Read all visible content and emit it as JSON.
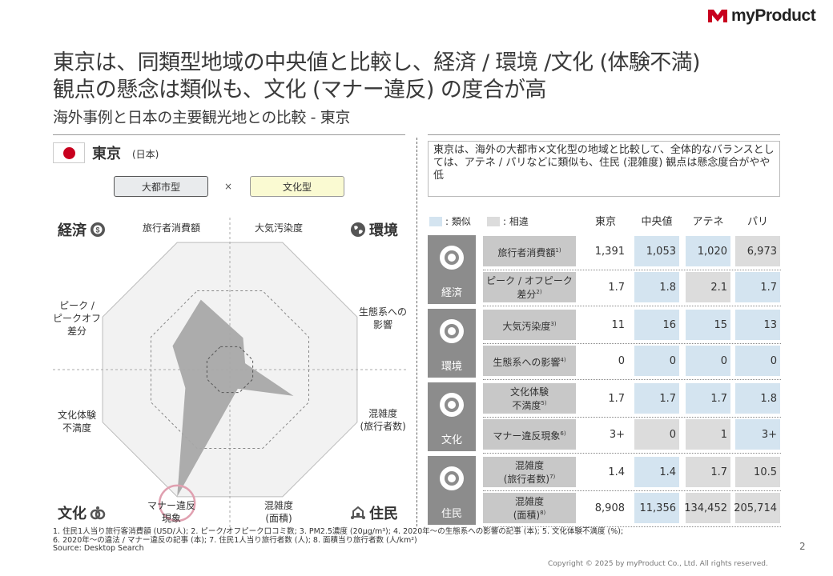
{
  "brand": {
    "name": "myProduct"
  },
  "title": {
    "line1": "東京は、同類型地域の中央値と比較し、経済 / 環境 /文化 (体験不満)",
    "line2": "観点の懸念は類似も、文化 (マナー違反) の度合が高",
    "subtitle": "海外事例と日本の主要観光地との比較 - 東京"
  },
  "city": {
    "name": "東京",
    "country": "(日本)"
  },
  "tags": {
    "type1": "大都市型",
    "times": "×",
    "type2": "文化型"
  },
  "radar": {
    "axes": [
      "旅行者消費額",
      "大気汚染度",
      "生態系への\n影響",
      "混雑度\n(旅行者数)",
      "混雑度\n(面積)",
      "マナー違反\n現象",
      "文化体験\n不満度",
      "ピーク /\nピークオフ\n差分"
    ],
    "values": [
      0.55,
      0.25,
      0.12,
      0.5,
      0.15,
      1.0,
      0.35,
      0.45
    ],
    "highlighted_axis": "マナー違反\n現象",
    "categories": {
      "econ": "経済",
      "env": "環境",
      "culture": "文化",
      "resident": "住民"
    }
  },
  "note": "東京は、海外の大都市×文化型の地域と比較して、全体的なバランスとしては、アテネ / パリなどに類似も、住民 (混雑度) 観点は懸念度合がやや低",
  "legend": {
    "similar": ": 類似",
    "different": ": 相違"
  },
  "colors": {
    "similar": "#d4e4f0",
    "different": "#dcdcdc",
    "category": "#8c8c8c",
    "metric": "#c8c8c8",
    "brand_red": "#c8001e"
  },
  "table": {
    "columns": [
      "東京",
      "中央値",
      "アテネ",
      "パリ"
    ],
    "groups": [
      {
        "name": "経済",
        "icon": "money-cycle-icon",
        "rows": [
          {
            "metric": "旅行者消費額",
            "sup": "1)",
            "values": [
              "1,391",
              "1,053",
              "1,020",
              "6,973"
            ],
            "similar": [
              false,
              true,
              true,
              false
            ]
          },
          {
            "metric": "ピーク / オフピーク\n差分",
            "sup": "2)",
            "values": [
              "1.7",
              "1.8",
              "2.1",
              "1.7"
            ],
            "similar": [
              false,
              true,
              false,
              true
            ]
          }
        ]
      },
      {
        "name": "環境",
        "icon": "earth-icon",
        "rows": [
          {
            "metric": "大気汚染度",
            "sup": "3)",
            "values": [
              "11",
              "16",
              "15",
              "13"
            ],
            "similar": [
              false,
              true,
              true,
              true
            ]
          },
          {
            "metric": "生態系への影響",
            "sup": "4)",
            "values": [
              "0",
              "0",
              "0",
              "0"
            ],
            "similar": [
              false,
              true,
              true,
              true
            ]
          }
        ]
      },
      {
        "name": "文化",
        "icon": "culture-icon",
        "rows": [
          {
            "metric": "文化体験\n不満度",
            "sup": "5)",
            "values": [
              "1.7",
              "1.7",
              "1.7",
              "1.8"
            ],
            "similar": [
              false,
              true,
              true,
              true
            ]
          },
          {
            "metric": "マナー違反現象",
            "sup": "6)",
            "values": [
              "3+",
              "0",
              "1",
              "3+"
            ],
            "similar": [
              false,
              false,
              false,
              true
            ]
          }
        ]
      },
      {
        "name": "住民",
        "icon": "residents-icon",
        "rows": [
          {
            "metric": "混雑度\n(旅行者数)",
            "sup": "7)",
            "values": [
              "1.4",
              "1.4",
              "1.7",
              "10.5"
            ],
            "similar": [
              false,
              true,
              false,
              false
            ]
          },
          {
            "metric": "混雑度\n(面積)",
            "sup": "8)",
            "values": [
              "8,908",
              "11,356",
              "134,452",
              "205,714"
            ],
            "similar": [
              false,
              true,
              false,
              false
            ]
          }
        ]
      }
    ]
  },
  "footnotes": [
    "1. 住民1人当り旅行客消費額 (USD/人); 2. ピーク/オフピーク口コミ数; 3. PM2.5濃度 (20μg/m³); 4. 2020年〜の生態系への影響の記事 (本); 5. 文化体験不満度 (%);",
    "6. 2020年〜の違法 / マナー違反の記事 (本); 7. 住民1人当り旅行者数 (人); 8. 面積当り旅行者数 (人/km²)",
    "Source: Desktop Search"
  ],
  "page_number": "2",
  "copyright": "Copyright © 2025 by myProduct Co., Ltd.  All rights reserved."
}
